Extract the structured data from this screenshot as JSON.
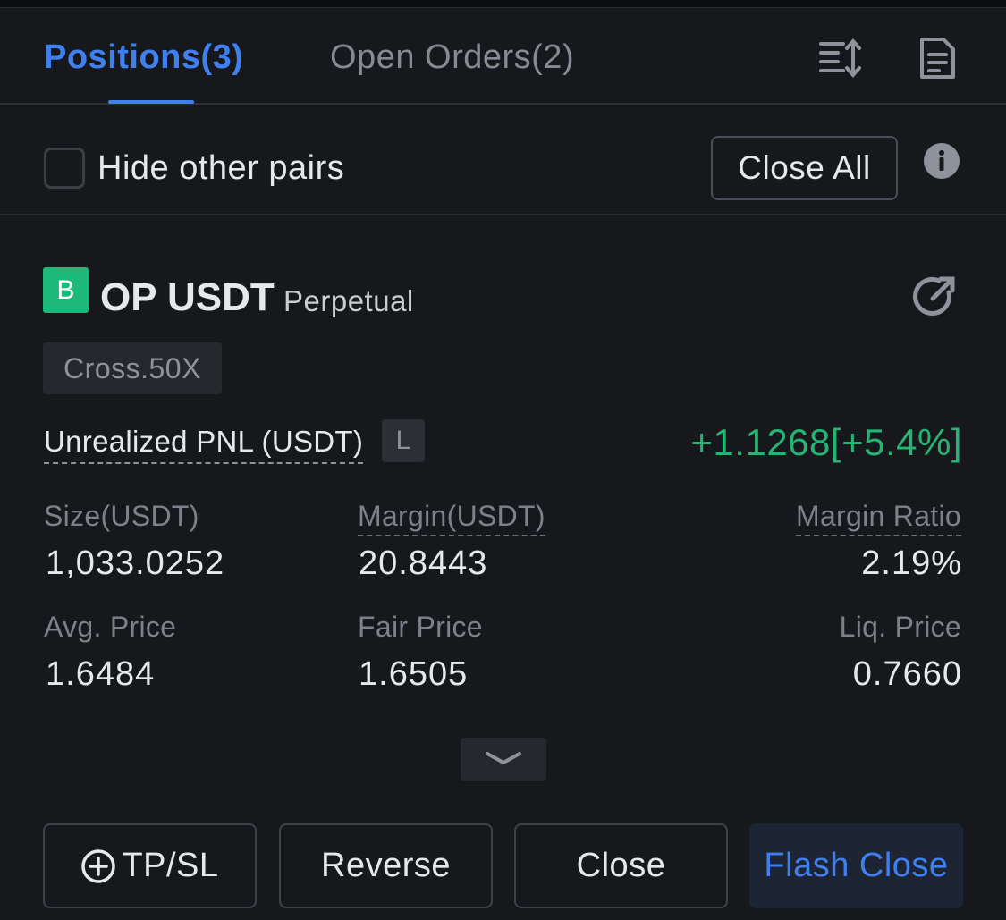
{
  "tabs": [
    {
      "label": "Positions(3)",
      "active": true
    },
    {
      "label": "Open Orders(2)",
      "active": false
    }
  ],
  "header_icons": [
    "sort-icon",
    "document-icon"
  ],
  "filter": {
    "hide_other_pairs_label": "Hide other pairs",
    "hide_other_pairs_checked": false,
    "close_all_label": "Close All",
    "info_icon": "info-icon"
  },
  "position": {
    "side_badge": "B",
    "symbol": "OP USDT",
    "contract_type": "Perpetual",
    "mode": "Cross.50X",
    "pnl_label": "Unrealized PNL (USDT)",
    "pnl_tag": "L",
    "pnl_value": "+1.1268[+5.4%]",
    "fields": {
      "size_label": "Size(USDT)",
      "size_value": "1,033.0252",
      "margin_label": "Margin(USDT)",
      "margin_value": "20.8443",
      "margin_ratio_label": "Margin Ratio",
      "margin_ratio_value": "2.19%",
      "avg_price_label": "Avg. Price",
      "avg_price_value": "1.6484",
      "fair_price_label": "Fair Price",
      "fair_price_value": "1.6505",
      "liq_price_label": "Liq. Price",
      "liq_price_value": "0.7660"
    }
  },
  "actions": {
    "tpsl_label": "TP/SL",
    "reverse_label": "Reverse",
    "close_label": "Close",
    "flash_close_label": "Flash Close"
  },
  "colors": {
    "accent_blue": "#3f7ff0",
    "profit_green": "#27b374",
    "badge_green": "#1db978",
    "panel_bg": "#16181c"
  }
}
